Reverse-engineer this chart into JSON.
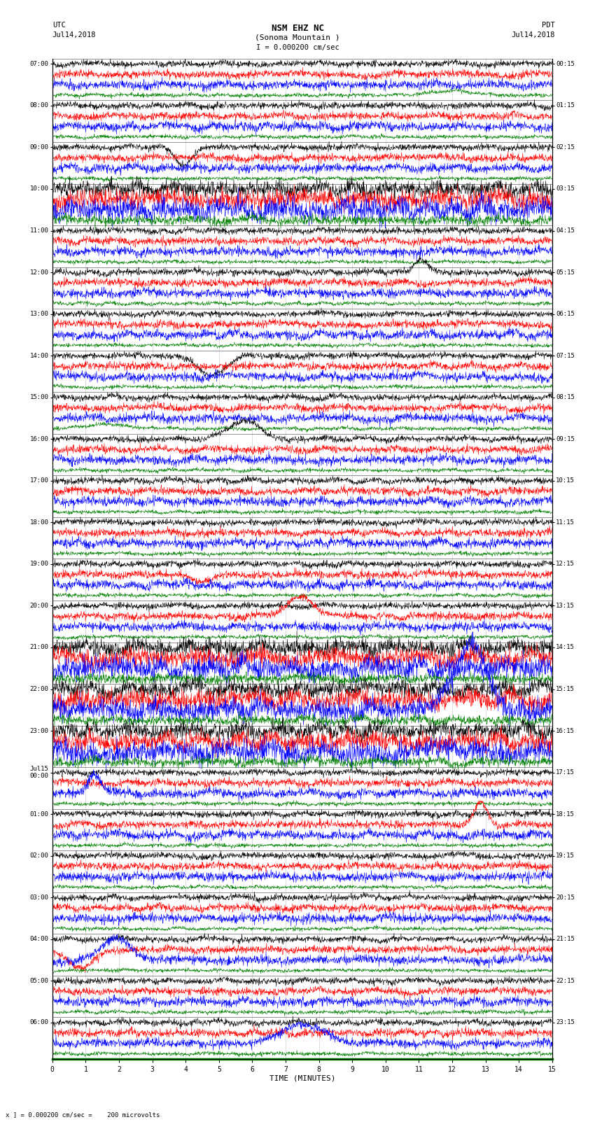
{
  "title_line1": "NSM EHZ NC",
  "title_line2": "(Sonoma Mountain )",
  "scale_text": "I = 0.000200 cm/sec",
  "left_label": "UTC",
  "left_date": "Jul14,2018",
  "right_label": "PDT",
  "right_date": "Jul14,2018",
  "xlabel": "TIME (MINUTES)",
  "bottom_note": "x ] = 0.000200 cm/sec =    200 microvolts",
  "utc_labels": [
    "07:00",
    "08:00",
    "09:00",
    "10:00",
    "11:00",
    "12:00",
    "13:00",
    "14:00",
    "15:00",
    "16:00",
    "17:00",
    "18:00",
    "19:00",
    "20:00",
    "21:00",
    "22:00",
    "23:00",
    "Jul15\n00:00",
    "01:00",
    "02:00",
    "03:00",
    "04:00",
    "05:00",
    "06:00"
  ],
  "pdt_labels": [
    "00:15",
    "01:15",
    "02:15",
    "03:15",
    "04:15",
    "05:15",
    "06:15",
    "07:15",
    "08:15",
    "09:15",
    "10:15",
    "11:15",
    "12:15",
    "13:15",
    "14:15",
    "15:15",
    "16:15",
    "17:15",
    "18:15",
    "19:15",
    "20:15",
    "21:15",
    "22:15",
    "23:15"
  ],
  "n_hours": 24,
  "traces_per_hour": 4,
  "trace_colors": [
    "black",
    "red",
    "blue",
    "green"
  ],
  "x_ticks": [
    0,
    1,
    2,
    3,
    4,
    5,
    6,
    7,
    8,
    9,
    10,
    11,
    12,
    13,
    14,
    15
  ],
  "bg_color": "white",
  "grid_color": "#888888",
  "amplitude_black": 0.25,
  "amplitude_red": 0.3,
  "amplitude_blue": 0.35,
  "amplitude_green": 0.15
}
